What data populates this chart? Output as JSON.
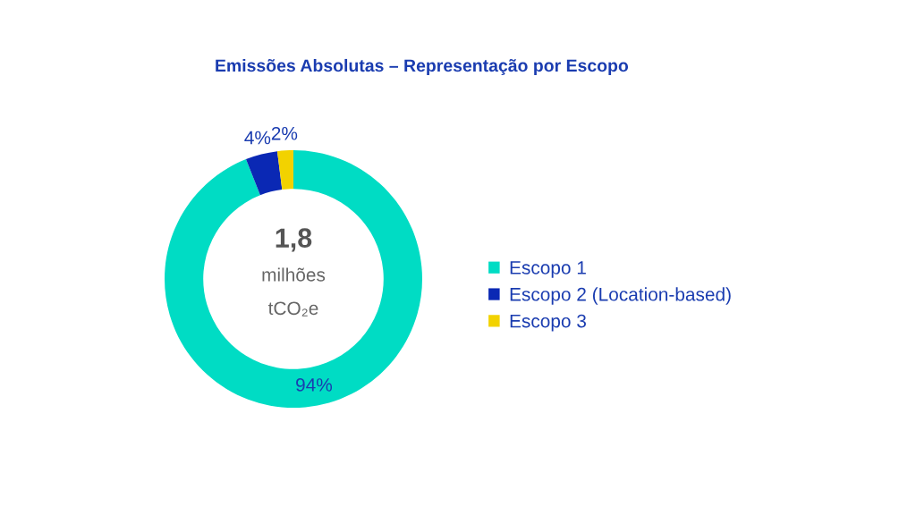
{
  "chart_data": {
    "type": "donut",
    "title": "Emissões Absolutas – Representação por Escopo",
    "categories": [
      "Escopo 1",
      "Escopo 2 (Location-based)",
      "Escopo 3"
    ],
    "values": [
      94,
      4,
      2
    ],
    "colors": [
      "#00dcc4",
      "#0a28b4",
      "#f2d200"
    ],
    "value_labels": [
      "94%",
      "4%",
      "2%"
    ],
    "annotations": [
      "1,8",
      "milhões",
      "tCO₂e"
    ],
    "legend": "right"
  }
}
